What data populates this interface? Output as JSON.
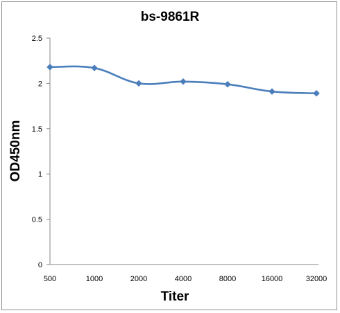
{
  "chart_data": {
    "type": "line",
    "title": "bs-9861R",
    "xlabel": "Titer",
    "ylabel": "OD450nm",
    "categories": [
      "500",
      "1000",
      "2000",
      "4000",
      "8000",
      "16000",
      "32000"
    ],
    "series": [
      {
        "values": [
          2.18,
          2.17,
          2.0,
          2.02,
          1.99,
          1.91,
          1.89
        ]
      }
    ],
    "ylim": [
      0,
      2.5
    ],
    "yticks": [
      "0",
      "0.5",
      "1",
      "1.5",
      "2",
      "2.5"
    ],
    "grid": false,
    "legend": "none",
    "line_color": "#4a7ebb",
    "marker": "diamond"
  }
}
